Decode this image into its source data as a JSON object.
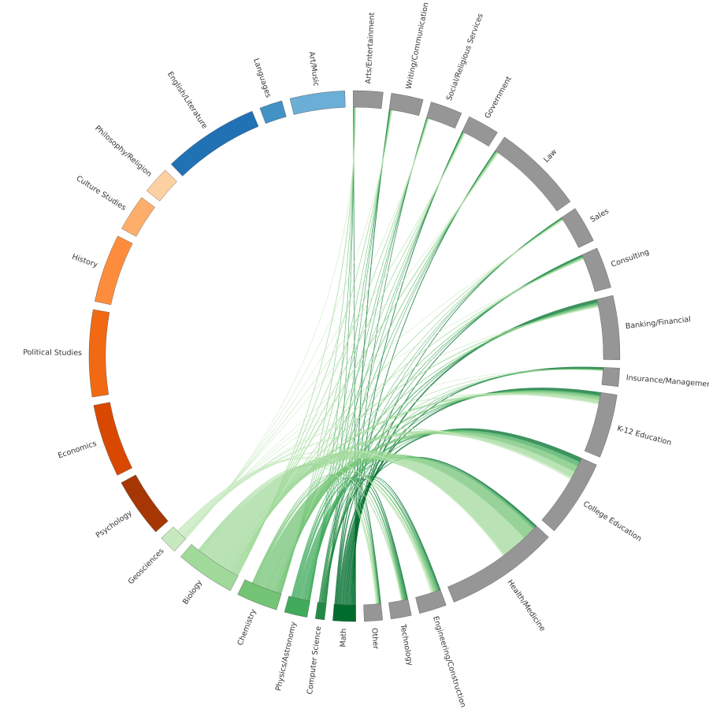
{
  "chart_data": {
    "type": "chord",
    "groups": [
      {
        "name": "Arts/Entertainment",
        "value": 6.5,
        "color": "#969696"
      },
      {
        "name": "Writing/Communication",
        "value": 7,
        "color": "#969696"
      },
      {
        "name": "Social/Religious Services",
        "value": 7,
        "color": "#969696"
      },
      {
        "name": "Government",
        "value": 7,
        "color": "#969696"
      },
      {
        "name": "Law",
        "value": 20,
        "color": "#969696"
      },
      {
        "name": "Sales",
        "value": 8,
        "color": "#969696"
      },
      {
        "name": "Consulting",
        "value": 9,
        "color": "#969696"
      },
      {
        "name": "Banking/Financial",
        "value": 14,
        "color": "#969696"
      },
      {
        "name": "Insurance/Management",
        "value": 4,
        "color": "#969696"
      },
      {
        "name": "K-12 Education",
        "value": 14,
        "color": "#969696"
      },
      {
        "name": "College Education",
        "value": 17,
        "color": "#969696"
      },
      {
        "name": "Health/Medicine",
        "value": 25,
        "color": "#969696"
      },
      {
        "name": "Engineering/Construction",
        "value": 6,
        "color": "#969696"
      },
      {
        "name": "Technology",
        "value": 4.5,
        "color": "#969696"
      },
      {
        "name": "Other",
        "value": 4,
        "color": "#969696"
      },
      {
        "name": "Math",
        "value": 5,
        "color": "#006d2c",
        "flows": [
          0.1,
          0.2,
          0.1,
          0.2,
          0.2,
          0.2,
          0.3,
          0.6,
          0.4,
          0.6,
          0.8,
          0.4,
          0.3,
          0.3,
          0.2
        ]
      },
      {
        "name": "Computer Science",
        "value": 2,
        "color": "#238b45",
        "flows": [
          0.05,
          0.05,
          0.05,
          0.05,
          0.05,
          0.05,
          0.1,
          0.2,
          0.05,
          0.1,
          0.2,
          0.1,
          0.2,
          0.4,
          0.1
        ]
      },
      {
        "name": "Physics/Astronomy",
        "value": 5,
        "color": "#41ab5d",
        "flows": [
          0.1,
          0.1,
          0.1,
          0.1,
          0.1,
          0.1,
          0.2,
          0.4,
          0.1,
          0.4,
          1,
          0.5,
          0.6,
          0.4,
          0.2
        ]
      },
      {
        "name": "Chemistry",
        "value": 9,
        "color": "#74c476",
        "flows": [
          0.1,
          0.1,
          0.1,
          0.1,
          0.2,
          0.1,
          0.2,
          0.2,
          0.1,
          0.6,
          1.5,
          3,
          0.5,
          0.2,
          0.2
        ]
      },
      {
        "name": "Biology",
        "value": 13,
        "color": "#a1d99b",
        "flows": [
          0.2,
          0.2,
          0.2,
          0.2,
          0.3,
          0.2,
          0.2,
          0.3,
          0.1,
          0.8,
          1.5,
          6,
          0.3,
          0.2,
          0.3
        ]
      },
      {
        "name": "Geosciences",
        "value": 4,
        "color": "#c7e9c0",
        "flows": [
          0.1,
          0.1,
          0.1,
          0.2,
          0.1,
          0.1,
          0.1,
          0.1,
          0.05,
          0.3,
          0.5,
          0.3,
          0.4,
          0.1,
          0.2
        ]
      },
      {
        "name": "Psychology",
        "value": 13,
        "color": "#a63603"
      },
      {
        "name": "Economics",
        "value": 16,
        "color": "#d94801"
      },
      {
        "name": "Political Studies",
        "value": 19,
        "color": "#f16913"
      },
      {
        "name": "History",
        "value": 15,
        "color": "#fd8d3c"
      },
      {
        "name": "Culture Studies",
        "value": 8,
        "color": "#fdae6b"
      },
      {
        "name": "Philosophy/Religion",
        "value": 6,
        "color": "#fdd0a2"
      },
      {
        "name": "English/Literature",
        "value": 21,
        "color": "#2171b5"
      },
      {
        "name": "Languages",
        "value": 5,
        "color": "#4292c6"
      },
      {
        "name": "Art/Music",
        "value": 12,
        "color": "#6baed6"
      }
    ]
  }
}
